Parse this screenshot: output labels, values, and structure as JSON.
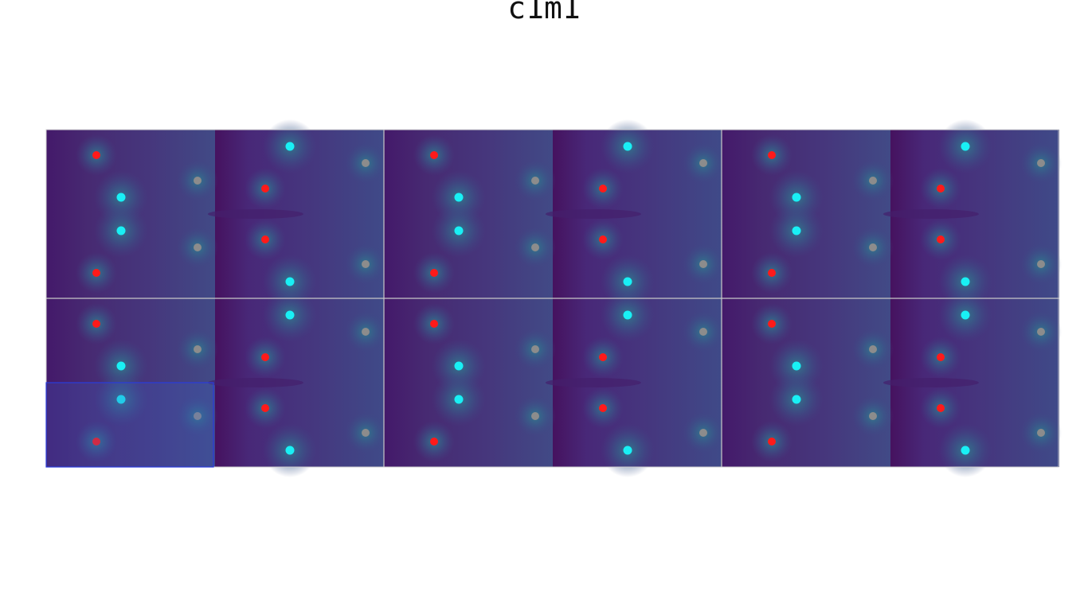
{
  "title": "c1m1"
}
